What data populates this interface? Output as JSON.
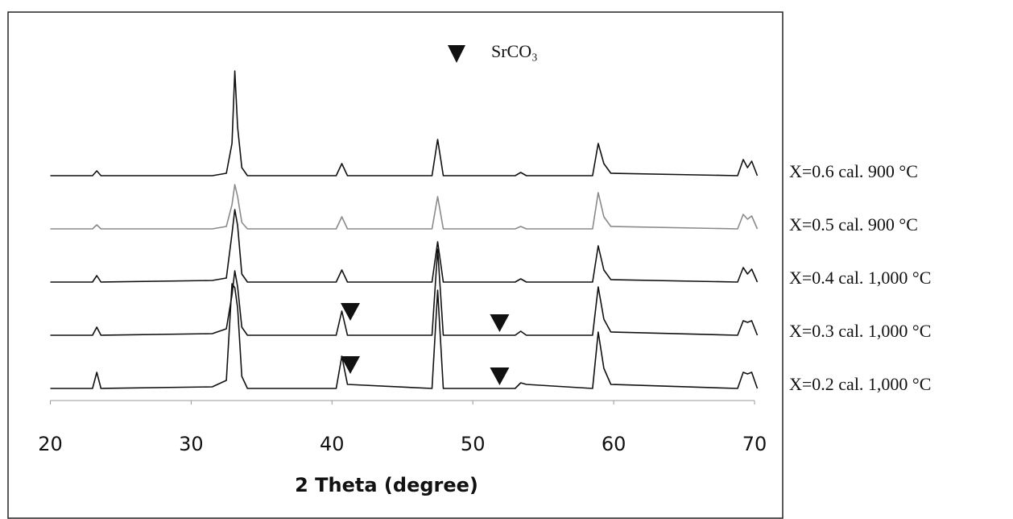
{
  "chart_data": {
    "type": "line",
    "x_label": "2 Theta (degree)",
    "legend": "SrCO₃",
    "x": [
      20,
      23.0,
      23.3,
      23.6,
      31.5,
      32.5,
      32.9,
      33.1,
      33.3,
      33.6,
      34.0,
      40.3,
      40.7,
      41.1,
      47.1,
      47.5,
      47.9,
      53.0,
      53.4,
      53.8,
      58.5,
      58.9,
      59.3,
      59.8,
      68.8,
      69.2,
      69.5,
      69.8,
      70.2
    ],
    "xlim": [
      17,
      72
    ],
    "xticks": [
      20,
      30,
      40,
      50,
      60,
      70
    ],
    "series": [
      {
        "name": "X=0.6 cal. 900 °C",
        "color": "#111111",
        "values": [
          0,
          0,
          6,
          0,
          0,
          3,
          40,
          130,
          60,
          10,
          0,
          0,
          15,
          0,
          0,
          45,
          0,
          0,
          4,
          0,
          0,
          40,
          15,
          3,
          0,
          20,
          10,
          18,
          0
        ]
      },
      {
        "name": "X=0.5 cal. 900 °C",
        "color": "#8a8a8a",
        "values": [
          0,
          0,
          5,
          0,
          0,
          3,
          30,
          55,
          40,
          8,
          0,
          0,
          15,
          0,
          0,
          40,
          0,
          0,
          3,
          0,
          0,
          45,
          15,
          3,
          0,
          18,
          12,
          16,
          0
        ]
      },
      {
        "name": "X=0.4 cal. 1,000 °C",
        "color": "#111111",
        "values": [
          0,
          0,
          8,
          0,
          2,
          5,
          60,
          90,
          70,
          10,
          0,
          0,
          15,
          0,
          0,
          50,
          0,
          0,
          4,
          0,
          0,
          45,
          15,
          3,
          0,
          18,
          10,
          16,
          0
        ]
      },
      {
        "name": "X=0.3 cal. 1,000 °C",
        "color": "#111111",
        "values": [
          0,
          0,
          10,
          0,
          2,
          8,
          50,
          80,
          60,
          10,
          0,
          0,
          30,
          0,
          0,
          107,
          0,
          0,
          5,
          0,
          0,
          60,
          20,
          4,
          0,
          18,
          16,
          18,
          0
        ],
        "markers": [
          41.3,
          51.9
        ]
      },
      {
        "name": "X=0.2 cal. 1,000 °C",
        "color": "#111111",
        "values": [
          0,
          0,
          20,
          0,
          2,
          10,
          130,
          125,
          100,
          15,
          0,
          0,
          40,
          5,
          0,
          122,
          0,
          0,
          7,
          5,
          0,
          70,
          25,
          5,
          0,
          20,
          18,
          20,
          0
        ],
        "markers": [
          41.3,
          51.9
        ]
      }
    ]
  }
}
